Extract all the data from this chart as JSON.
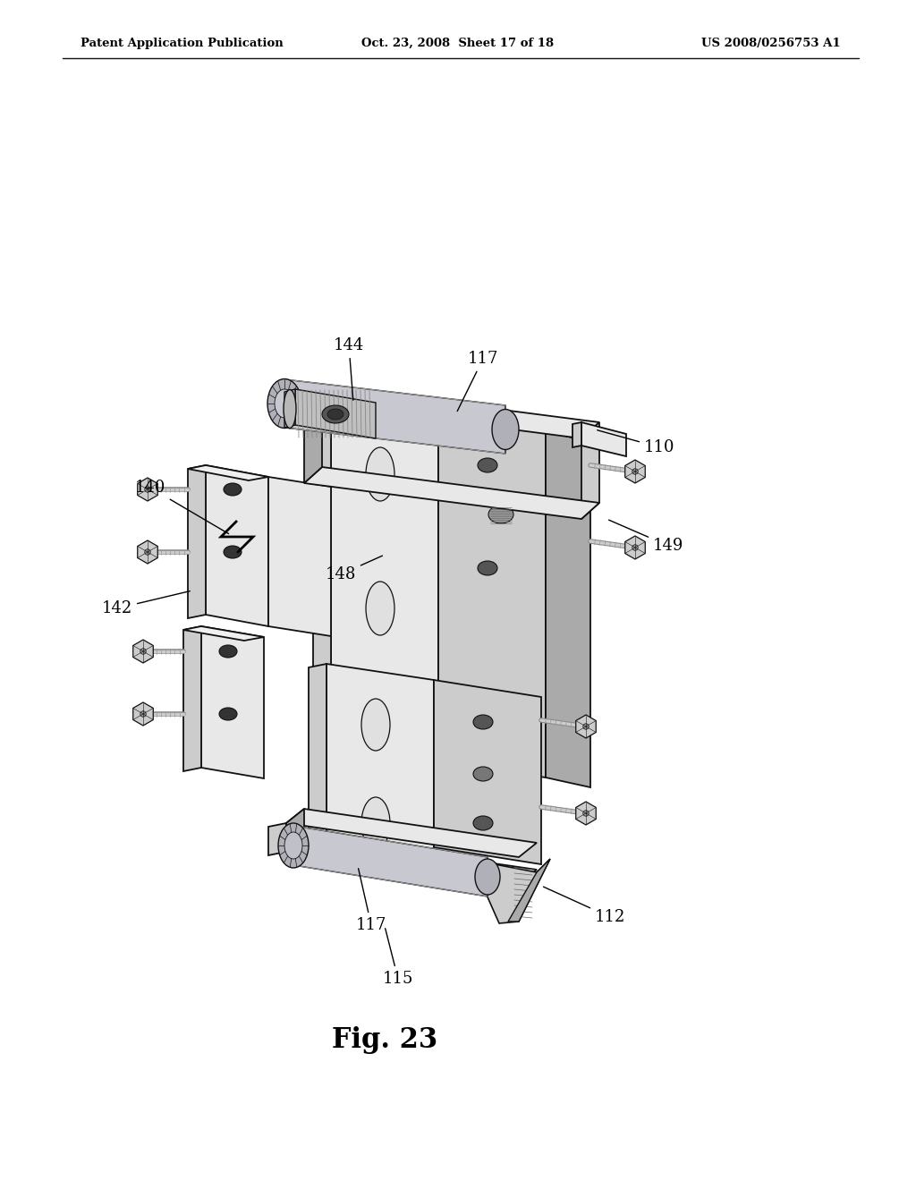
{
  "header_left": "Patent Application Publication",
  "header_middle": "Oct. 23, 2008  Sheet 17 of 18",
  "header_right": "US 2008/0256753 A1",
  "background_color": "#ffffff",
  "fig_label": "Fig. 23",
  "lw_main": 1.3,
  "lw_thin": 0.7,
  "fc_light": "#e8e8e8",
  "fc_mid": "#cccccc",
  "fc_dark": "#aaaaaa",
  "fc_hole": "#333333",
  "ec": "#111111"
}
